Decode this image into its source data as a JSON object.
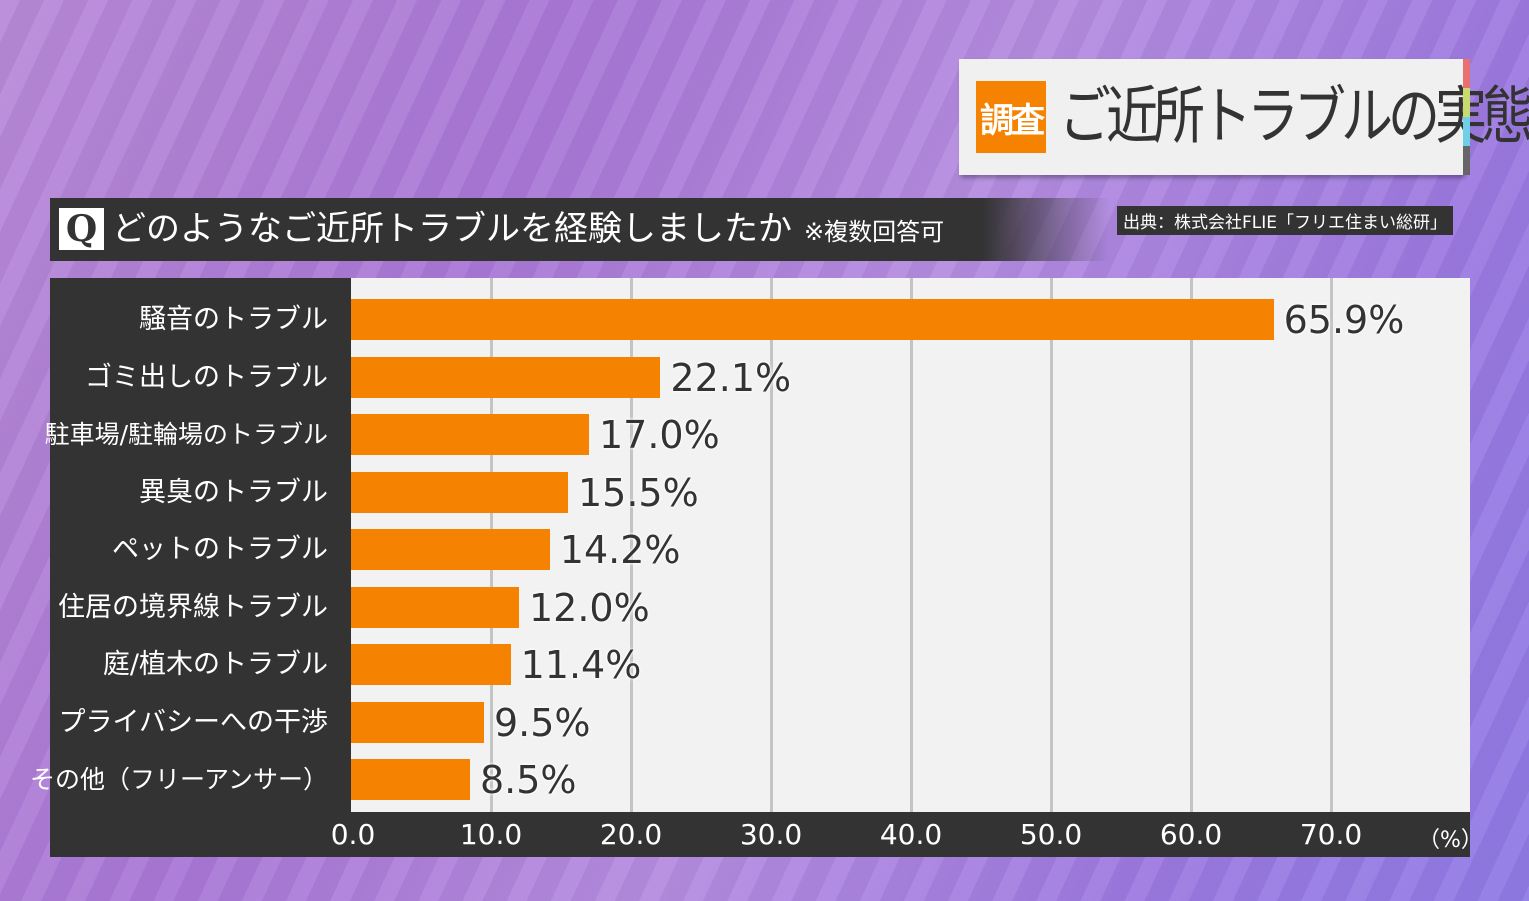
{
  "header": {
    "badge": "調査",
    "title": "ご近所トラブルの実態",
    "accent_colors": [
      "#e87070",
      "#c8dc6e",
      "#6fcfe6",
      "#666666"
    ]
  },
  "question": {
    "mark": "Q",
    "text": "どのようなご近所トラブルを経験しましたか",
    "note": "※複数回答可"
  },
  "source": "出典：株式会社FLIE「フリエ住まい総研」",
  "chart_data": {
    "type": "bar",
    "orientation": "horizontal",
    "categories": [
      "騒音のトラブル",
      "ゴミ出しのトラブル",
      "駐車場/駐輪場のトラブル",
      "異臭のトラブル",
      "ペットのトラブル",
      "住居の境界線トラブル",
      "庭/植木のトラブル",
      "プライバシーへの干渉",
      "その他（フリーアンサー）"
    ],
    "values": [
      65.9,
      22.1,
      17.0,
      15.5,
      14.2,
      12.0,
      11.4,
      9.5,
      8.5
    ],
    "value_labels": [
      "65.9%",
      "22.1%",
      "17.0%",
      "15.5%",
      "14.2%",
      "12.0%",
      "11.4%",
      "9.5%",
      "8.5%"
    ],
    "xlim": [
      0,
      80
    ],
    "xticks": [
      "0.0",
      "10.0",
      "20.0",
      "30.0",
      "40.0",
      "50.0",
      "60.0",
      "70.0"
    ],
    "xunit": "（%）",
    "bar_color": "#f58200",
    "grid": true
  }
}
